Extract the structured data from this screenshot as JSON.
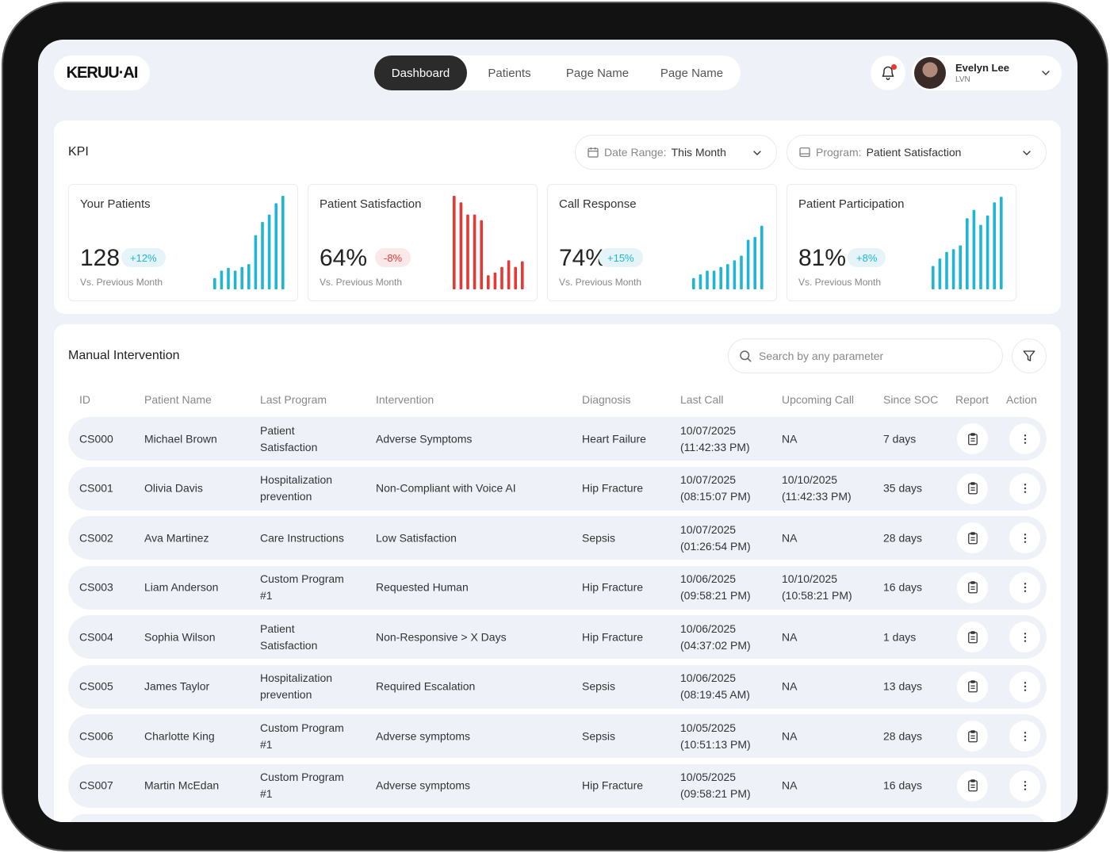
{
  "header": {
    "logo": "KERUU·AI",
    "nav": [
      {
        "label": "Dashboard",
        "active": true
      },
      {
        "label": "Patients",
        "active": false
      },
      {
        "label": "Page Name",
        "active": false
      },
      {
        "label": "Page Name",
        "active": false
      }
    ],
    "user": {
      "name": "Evelyn Lee",
      "role": "LVN"
    }
  },
  "kpi": {
    "title": "KPI",
    "date_range": {
      "label": "Date Range:",
      "value": "This Month"
    },
    "program": {
      "label": "Program:",
      "value": "Patient Satisfaction"
    },
    "metrics": [
      {
        "title": "Your Patients",
        "value": "128",
        "change": "+12%",
        "trend": "up",
        "sub": "Vs. Previous Month",
        "color": "#1fb6d6",
        "bars": [
          0.12,
          0.2,
          0.23,
          0.2,
          0.24,
          0.27,
          0.58,
          0.72,
          0.8,
          0.92,
          1.0
        ]
      },
      {
        "title": "Patient Satisfaction",
        "value": "64%",
        "change": "-8%",
        "trend": "down",
        "sub": "Vs. Previous Month",
        "color": "#e53935",
        "bars": [
          1.0,
          0.93,
          0.8,
          0.8,
          0.74,
          0.15,
          0.18,
          0.24,
          0.31,
          0.24,
          0.3
        ]
      },
      {
        "title": "Call Response",
        "value": "74%",
        "change": "+15%",
        "trend": "up",
        "sub": "Vs. Previous Month",
        "color": "#1fb6d6",
        "bars": [
          0.12,
          0.16,
          0.2,
          0.2,
          0.24,
          0.27,
          0.31,
          0.36,
          0.53,
          0.56,
          0.68
        ]
      },
      {
        "title": "Patient Participation",
        "value": "81%",
        "change": "+8%",
        "trend": "up",
        "sub": "Vs. Previous Month",
        "color": "#1fb6d6",
        "bars": [
          0.25,
          0.33,
          0.4,
          0.43,
          0.47,
          0.76,
          0.85,
          0.69,
          0.79,
          0.93,
          0.99
        ]
      }
    ]
  },
  "intervention": {
    "title": "Manual Intervention",
    "search_placeholder": "Search by any parameter",
    "columns": [
      "ID",
      "Patient Name",
      "Last Program",
      "Intervention",
      "Diagnosis",
      "Last Call",
      "Upcoming Call",
      "Since SOC",
      "Report",
      "Action"
    ],
    "rows": [
      {
        "id": "CS000",
        "name": "Michael Brown",
        "program": [
          "Patient",
          "Satisfaction"
        ],
        "intervention": "Adverse Symptoms",
        "diagnosis": "Heart Failure",
        "last_call": [
          "10/07/2025",
          "(11:42:33 PM)"
        ],
        "upcoming": [
          "NA"
        ],
        "soc": "7 days"
      },
      {
        "id": "CS001",
        "name": "Olivia Davis",
        "program": [
          "Hospitalization",
          "prevention"
        ],
        "intervention": "Non-Compliant with Voice AI",
        "diagnosis": "Hip Fracture",
        "last_call": [
          "10/07/2025",
          "(08:15:07 PM)"
        ],
        "upcoming": [
          "10/10/2025",
          "(11:42:33 PM)"
        ],
        "soc": "35 days"
      },
      {
        "id": "CS002",
        "name": "Ava Martinez",
        "program": [
          "Care Instructions"
        ],
        "intervention": "Low Satisfaction",
        "diagnosis": "Sepsis",
        "last_call": [
          "10/07/2025",
          "(01:26:54 PM)"
        ],
        "upcoming": [
          "NA"
        ],
        "soc": "28 days"
      },
      {
        "id": "CS003",
        "name": "Liam Anderson",
        "program": [
          "Custom Program",
          "#1"
        ],
        "intervention": "Requested Human",
        "diagnosis": "Hip Fracture",
        "last_call": [
          "10/06/2025",
          "(09:58:21 PM)"
        ],
        "upcoming": [
          "10/10/2025",
          "(10:58:21 PM)"
        ],
        "soc": "16 days"
      },
      {
        "id": "CS004",
        "name": "Sophia Wilson",
        "program": [
          "Patient",
          "Satisfaction"
        ],
        "intervention": "Non-Responsive > X Days",
        "diagnosis": "Hip Fracture",
        "last_call": [
          "10/06/2025",
          "(04:37:02 PM)"
        ],
        "upcoming": [
          "NA"
        ],
        "soc": "1 days"
      },
      {
        "id": "CS005",
        "name": "James Taylor",
        "program": [
          "Hospitalization",
          "prevention"
        ],
        "intervention": "Required Escalation",
        "diagnosis": "Sepsis",
        "last_call": [
          "10/06/2025",
          "(08:19:45 AM)"
        ],
        "upcoming": [
          "NA"
        ],
        "soc": "13 days"
      },
      {
        "id": "CS006",
        "name": "Charlotte King",
        "program": [
          "Custom Program",
          "#1"
        ],
        "intervention": "Adverse symptoms",
        "diagnosis": "Sepsis",
        "last_call": [
          "10/05/2025",
          "(10:51:13 PM)"
        ],
        "upcoming": [
          "NA"
        ],
        "soc": "28 days"
      },
      {
        "id": "CS007",
        "name": "Martin McEdan",
        "program": [
          "Custom Program",
          "#1"
        ],
        "intervention": "Adverse symptoms",
        "diagnosis": "Hip Fracture",
        "last_call": [
          "10/05/2025",
          "(09:58:21 PM)"
        ],
        "upcoming": [
          "NA"
        ],
        "soc": "16 days"
      }
    ]
  }
}
